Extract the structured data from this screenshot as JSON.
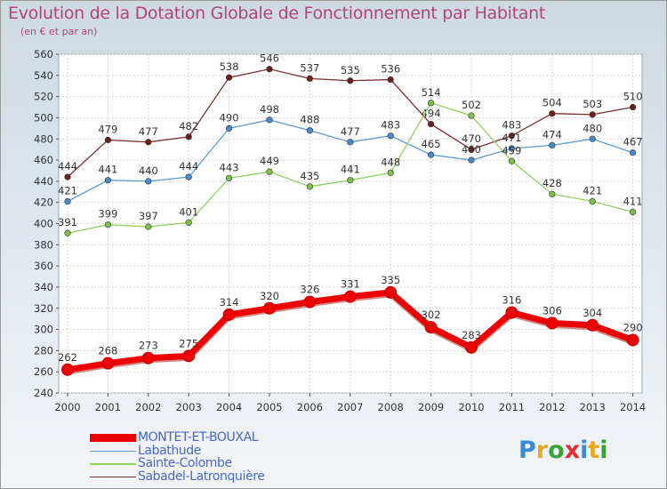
{
  "title": "Evolution de la Dotation Globale de Fonctionnement par Habitant",
  "subtitle": "(en € et par an)",
  "brand": {
    "letters": [
      {
        "ch": "P",
        "color": "#3a8ad6"
      },
      {
        "ch": "r",
        "color": "#e8a820"
      },
      {
        "ch": "o",
        "color": "#3aa03a"
      },
      {
        "ch": "x",
        "color": "#e03030"
      },
      {
        "ch": "i",
        "color": "#3a8ad6"
      },
      {
        "ch": "t",
        "color": "#e8a820"
      },
      {
        "ch": "i",
        "color": "#3aa03a"
      }
    ]
  },
  "chart_data": {
    "type": "line",
    "title": "Evolution de la Dotation Globale de Fonctionnement par Habitant",
    "subtitle": "(en € et par an)",
    "xlabel": "",
    "ylabel": "",
    "x": [
      "2000",
      "2001",
      "2002",
      "2003",
      "2004",
      "2005",
      "2006",
      "2007",
      "2008",
      "2009",
      "2010",
      "2011",
      "2012",
      "2013",
      "2014"
    ],
    "ylim": [
      240,
      560
    ],
    "yticks": [
      240,
      260,
      280,
      300,
      320,
      340,
      360,
      380,
      400,
      420,
      440,
      460,
      480,
      500,
      520,
      540,
      560
    ],
    "grid": true,
    "legend_position": "bottom-left",
    "series": [
      {
        "name": "MONTET-ET-BOUXAL",
        "color": "#ee0000",
        "thick": true,
        "values": [
          262,
          268,
          273,
          275,
          314,
          320,
          326,
          331,
          335,
          302,
          283,
          316,
          306,
          304,
          290
        ],
        "labels": [
          "262",
          "268",
          "273",
          "275",
          "314",
          "320",
          "326",
          "331",
          "335",
          "302",
          "283",
          "316",
          "306",
          "304",
          "290"
        ]
      },
      {
        "name": "Labathude",
        "color": "#5b9bd5",
        "point_color": "#4a8ac8",
        "values": [
          421,
          441,
          440,
          444,
          490,
          498,
          488,
          477,
          483,
          465,
          460,
          471,
          474,
          480,
          467
        ],
        "labels": [
          "421",
          "441",
          "440",
          "444",
          "490",
          "498",
          "488",
          "477",
          "483",
          "465",
          "460",
          "471",
          "474",
          "480",
          "467"
        ]
      },
      {
        "name": "Sainte-Colombe",
        "color": "#8fd060",
        "point_color": "#7cc04a",
        "values": [
          391,
          399,
          397,
          401,
          443,
          449,
          435,
          441,
          448,
          514,
          502,
          459,
          428,
          421,
          411
        ],
        "labels": [
          "391",
          "399",
          "397",
          "401",
          "443",
          "449",
          "435",
          "441",
          "448",
          "514",
          "502",
          "459",
          "428",
          "421",
          "411"
        ]
      },
      {
        "name": "Sabadel-Latronquière",
        "color": "#7a3030",
        "point_color": "#6a2020",
        "values": [
          444,
          479,
          477,
          482,
          538,
          546,
          537,
          535,
          536,
          494,
          470,
          483,
          504,
          503,
          510
        ],
        "labels": [
          "444",
          "479",
          "477",
          "482",
          "538",
          "546",
          "537",
          "535",
          "536",
          "494",
          "470",
          "483",
          "504",
          "503",
          "510"
        ]
      }
    ]
  }
}
